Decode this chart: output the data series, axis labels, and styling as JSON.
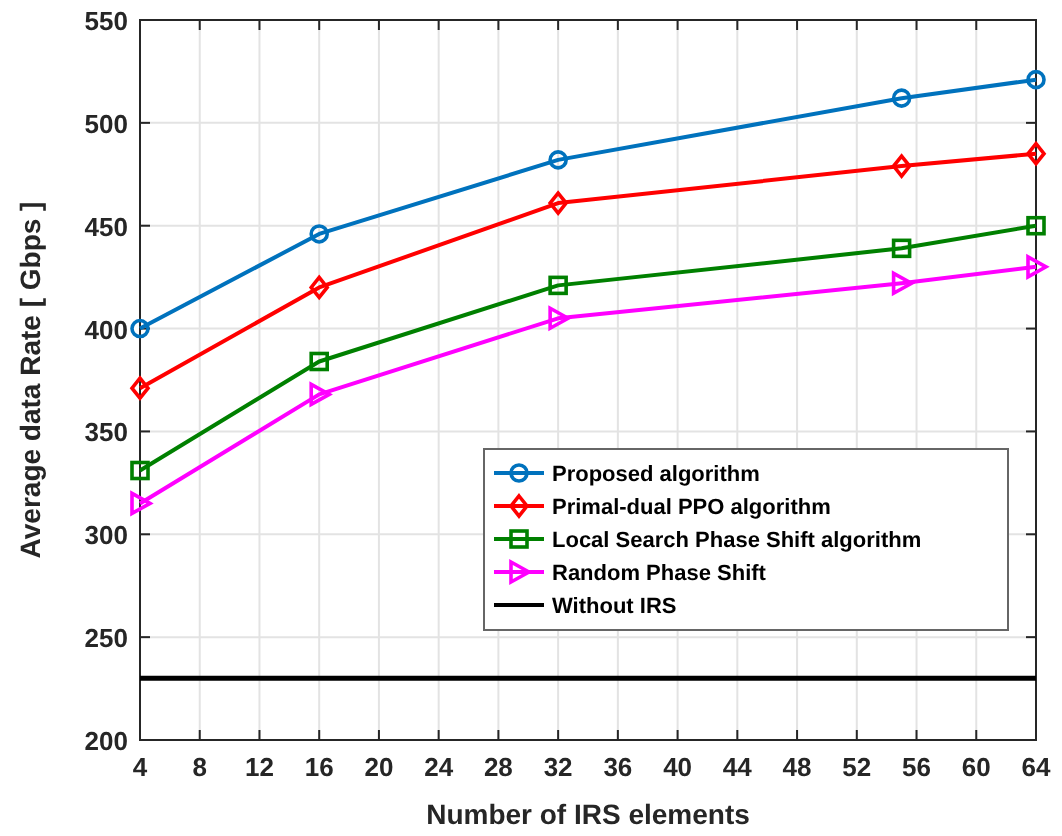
{
  "chart_data": {
    "type": "line",
    "xlabel": "Number of IRS elements",
    "ylabel": "Average data Rate [ Gbps ]",
    "x": [
      4,
      16,
      32,
      55,
      64
    ],
    "series": [
      {
        "name": "Proposed algorithm",
        "color": "#0072bd",
        "marker": "circle",
        "values": [
          400,
          446,
          482,
          512,
          521
        ]
      },
      {
        "name": "Primal-dual PPO algorithm",
        "color": "#ff0000",
        "marker": "diamond",
        "values": [
          371,
          420,
          461,
          479,
          485
        ]
      },
      {
        "name": "Local Search Phase Shift algorithm",
        "color": "#008000",
        "marker": "square",
        "values": [
          331,
          384,
          421,
          439,
          450
        ]
      },
      {
        "name": "Random Phase Shift",
        "color": "#ff00ff",
        "marker": "triangle",
        "values": [
          315,
          368,
          405,
          422,
          430
        ]
      },
      {
        "name": "Without IRS",
        "color": "#000000",
        "marker": "none",
        "x": [
          4,
          64
        ],
        "values": [
          230,
          230
        ]
      }
    ],
    "xlim": [
      4,
      64
    ],
    "xticks": [
      4,
      8,
      12,
      16,
      20,
      24,
      28,
      32,
      36,
      40,
      44,
      48,
      52,
      56,
      60,
      64
    ],
    "ylim": [
      200,
      550
    ],
    "yticks": [
      200,
      250,
      300,
      350,
      400,
      450,
      500,
      550
    ],
    "grid": true,
    "legend": "bottom right"
  }
}
